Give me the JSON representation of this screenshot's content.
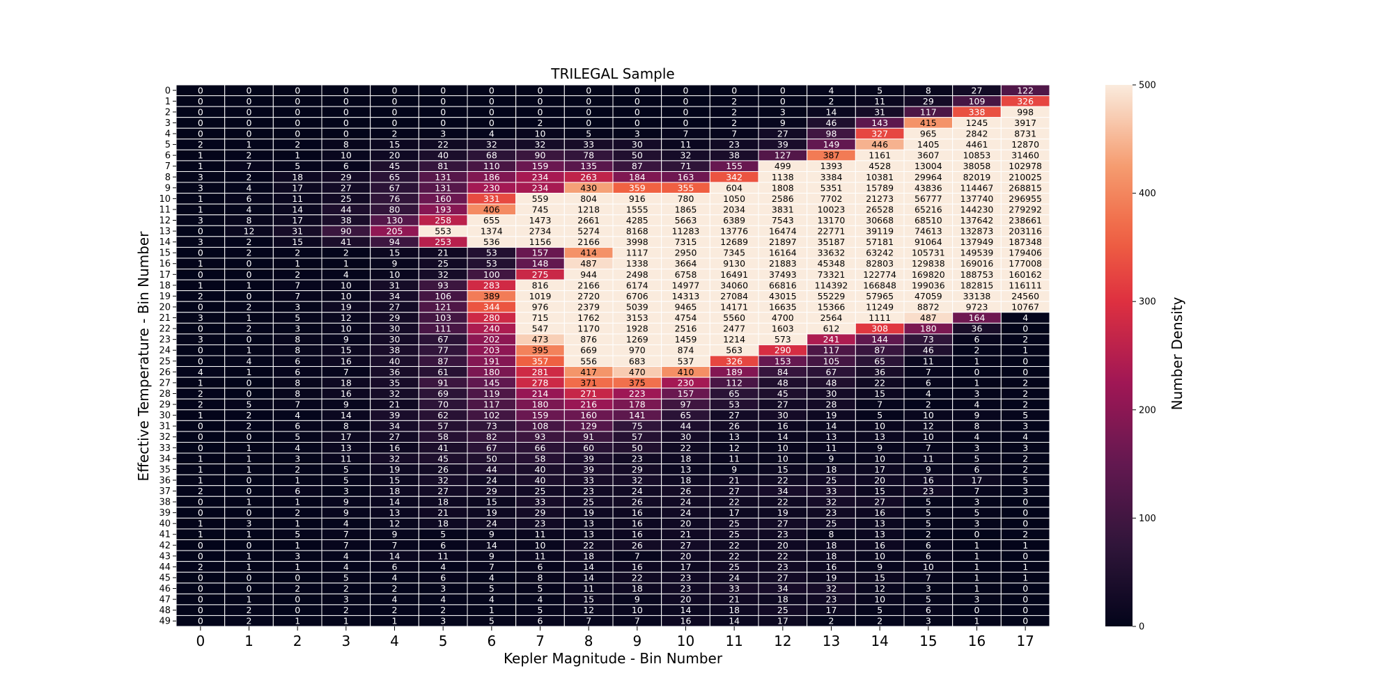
{
  "chart_data": {
    "type": "heatmap",
    "title": "TRILEGAL Sample",
    "xlabel": "Kepler Magnitude - Bin Number",
    "ylabel": "Effective Temperature - Bin Number",
    "colorbar_label": "Number Density",
    "colorbar_range": [
      0,
      500
    ],
    "colorbar_ticks": [
      0,
      100,
      200,
      300,
      400,
      500
    ],
    "colormap": "rocket",
    "gridlines": "white",
    "x_categories": [
      "0",
      "1",
      "2",
      "3",
      "4",
      "5",
      "6",
      "7",
      "8",
      "9",
      "10",
      "11",
      "12",
      "13",
      "14",
      "15",
      "16",
      "17"
    ],
    "y_categories": [
      "0",
      "1",
      "2",
      "3",
      "4",
      "5",
      "6",
      "7",
      "8",
      "9",
      "10",
      "11",
      "12",
      "13",
      "14",
      "15",
      "16",
      "17",
      "18",
      "19",
      "20",
      "21",
      "22",
      "23",
      "24",
      "25",
      "26",
      "27",
      "28",
      "29",
      "30",
      "31",
      "32",
      "33",
      "34",
      "35",
      "36",
      "37",
      "38",
      "39",
      "40",
      "41",
      "42",
      "43",
      "44",
      "45",
      "46",
      "47",
      "48",
      "49"
    ],
    "values": [
      [
        0,
        0,
        0,
        0,
        0,
        0,
        0,
        0,
        0,
        0,
        0,
        0,
        0,
        4,
        5,
        8,
        27,
        122
      ],
      [
        0,
        0,
        0,
        0,
        0,
        0,
        0,
        0,
        0,
        0,
        0,
        2,
        0,
        2,
        11,
        29,
        109,
        326
      ],
      [
        0,
        0,
        0,
        0,
        0,
        0,
        0,
        0,
        0,
        0,
        0,
        2,
        3,
        14,
        31,
        117,
        338,
        998
      ],
      [
        0,
        0,
        0,
        0,
        0,
        0,
        0,
        2,
        0,
        0,
        0,
        2,
        9,
        46,
        143,
        415,
        1245,
        3917
      ],
      [
        0,
        0,
        0,
        0,
        2,
        3,
        4,
        10,
        5,
        3,
        7,
        7,
        27,
        98,
        327,
        965,
        2842,
        8731
      ],
      [
        2,
        1,
        2,
        8,
        15,
        22,
        32,
        32,
        33,
        30,
        11,
        23,
        39,
        149,
        446,
        1405,
        4461,
        12870
      ],
      [
        1,
        2,
        1,
        10,
        20,
        40,
        68,
        90,
        78,
        50,
        32,
        38,
        127,
        387,
        1161,
        3607,
        10853,
        31460
      ],
      [
        1,
        7,
        5,
        6,
        45,
        81,
        110,
        159,
        135,
        87,
        71,
        155,
        499,
        1393,
        4528,
        13004,
        38058,
        102978
      ],
      [
        3,
        2,
        18,
        29,
        65,
        131,
        186,
        234,
        263,
        184,
        163,
        342,
        1138,
        3384,
        10381,
        29964,
        82019,
        210025
      ],
      [
        3,
        4,
        17,
        27,
        67,
        131,
        230,
        234,
        430,
        359,
        355,
        604,
        1808,
        5351,
        15789,
        43836,
        114467,
        268815
      ],
      [
        1,
        6,
        11,
        25,
        76,
        160,
        331,
        559,
        804,
        916,
        780,
        1050,
        2586,
        7702,
        21273,
        56777,
        137740,
        296955
      ],
      [
        1,
        4,
        14,
        44,
        80,
        193,
        406,
        745,
        1218,
        1555,
        1865,
        2034,
        3831,
        10023,
        26528,
        65216,
        144230,
        279292
      ],
      [
        3,
        8,
        17,
        38,
        130,
        258,
        655,
        1473,
        2661,
        4285,
        5663,
        6389,
        7543,
        13170,
        30668,
        68510,
        137642,
        238661
      ],
      [
        0,
        12,
        31,
        90,
        205,
        553,
        1374,
        2734,
        5274,
        8168,
        11283,
        13776,
        16474,
        22771,
        39119,
        74613,
        132873,
        203116
      ],
      [
        3,
        2,
        15,
        41,
        94,
        253,
        536,
        1156,
        2166,
        3998,
        7315,
        12689,
        21897,
        35187,
        57181,
        91064,
        137949,
        187348
      ],
      [
        0,
        2,
        2,
        2,
        15,
        21,
        53,
        157,
        414,
        1117,
        2950,
        7345,
        16164,
        33632,
        63242,
        105731,
        149539,
        179406
      ],
      [
        1,
        0,
        1,
        1,
        9,
        25,
        53,
        148,
        487,
        1338,
        3664,
        9130,
        21883,
        45348,
        82803,
        129838,
        169016,
        177008
      ],
      [
        0,
        0,
        2,
        4,
        10,
        32,
        100,
        275,
        944,
        2498,
        6758,
        16491,
        37493,
        73321,
        122774,
        169820,
        188753,
        160162
      ],
      [
        1,
        1,
        7,
        10,
        31,
        93,
        283,
        816,
        2166,
        6174,
        14977,
        34060,
        66816,
        114392,
        166848,
        199036,
        182815,
        116111
      ],
      [
        2,
        0,
        7,
        10,
        34,
        106,
        389,
        1019,
        2720,
        6706,
        14313,
        27084,
        43015,
        55229,
        57965,
        47059,
        33138,
        24560
      ],
      [
        0,
        2,
        3,
        19,
        27,
        121,
        344,
        976,
        2379,
        5039,
        9465,
        14171,
        16635,
        15366,
        11249,
        8872,
        9723,
        10767
      ],
      [
        3,
        1,
        5,
        12,
        29,
        103,
        280,
        715,
        1762,
        3153,
        4754,
        5560,
        4700,
        2564,
        1111,
        487,
        164,
        4
      ],
      [
        0,
        2,
        3,
        10,
        30,
        111,
        240,
        547,
        1170,
        1928,
        2516,
        2477,
        1603,
        612,
        308,
        180,
        36,
        0
      ],
      [
        3,
        0,
        8,
        9,
        30,
        67,
        202,
        473,
        876,
        1269,
        1459,
        1214,
        573,
        241,
        144,
        73,
        6,
        2
      ],
      [
        0,
        1,
        8,
        15,
        38,
        77,
        203,
        395,
        669,
        970,
        874,
        563,
        290,
        117,
        87,
        46,
        2,
        1
      ],
      [
        0,
        4,
        6,
        16,
        40,
        87,
        191,
        357,
        556,
        683,
        537,
        326,
        153,
        105,
        65,
        11,
        1,
        0
      ],
      [
        4,
        1,
        6,
        7,
        36,
        61,
        180,
        281,
        417,
        470,
        410,
        189,
        84,
        67,
        36,
        7,
        0,
        0
      ],
      [
        1,
        0,
        8,
        18,
        35,
        91,
        145,
        278,
        371,
        375,
        230,
        112,
        48,
        48,
        22,
        6,
        1,
        2
      ],
      [
        2,
        0,
        8,
        16,
        32,
        69,
        119,
        214,
        271,
        223,
        157,
        65,
        45,
        30,
        15,
        4,
        3,
        2
      ],
      [
        2,
        5,
        7,
        9,
        21,
        70,
        117,
        180,
        216,
        178,
        97,
        53,
        27,
        28,
        7,
        2,
        4,
        2
      ],
      [
        1,
        2,
        4,
        14,
        39,
        62,
        102,
        159,
        160,
        141,
        65,
        27,
        30,
        19,
        5,
        10,
        9,
        5
      ],
      [
        0,
        2,
        6,
        8,
        34,
        57,
        73,
        108,
        129,
        75,
        44,
        26,
        16,
        14,
        10,
        12,
        8,
        3
      ],
      [
        0,
        0,
        5,
        17,
        27,
        58,
        82,
        93,
        91,
        57,
        30,
        13,
        14,
        13,
        13,
        10,
        4,
        4
      ],
      [
        0,
        1,
        4,
        13,
        16,
        41,
        67,
        66,
        60,
        50,
        22,
        12,
        10,
        11,
        9,
        7,
        3,
        3
      ],
      [
        1,
        1,
        3,
        11,
        32,
        45,
        50,
        58,
        39,
        23,
        18,
        11,
        10,
        9,
        10,
        11,
        5,
        2
      ],
      [
        1,
        1,
        2,
        5,
        19,
        26,
        44,
        40,
        39,
        29,
        13,
        9,
        15,
        18,
        17,
        9,
        6,
        2
      ],
      [
        1,
        0,
        1,
        5,
        15,
        32,
        24,
        40,
        33,
        32,
        18,
        21,
        22,
        25,
        20,
        16,
        17,
        5
      ],
      [
        2,
        0,
        6,
        3,
        18,
        27,
        29,
        25,
        23,
        24,
        26,
        27,
        34,
        33,
        15,
        23,
        7,
        3
      ],
      [
        0,
        1,
        1,
        9,
        14,
        18,
        15,
        33,
        25,
        26,
        24,
        22,
        22,
        32,
        27,
        5,
        3,
        0
      ],
      [
        0,
        0,
        2,
        9,
        13,
        21,
        19,
        29,
        19,
        16,
        24,
        17,
        19,
        23,
        16,
        5,
        5,
        0
      ],
      [
        1,
        3,
        1,
        4,
        12,
        18,
        24,
        23,
        13,
        16,
        20,
        25,
        27,
        25,
        13,
        5,
        3,
        0
      ],
      [
        1,
        1,
        5,
        7,
        9,
        5,
        9,
        11,
        13,
        16,
        21,
        25,
        23,
        8,
        13,
        2,
        0,
        2
      ],
      [
        0,
        0,
        1,
        7,
        7,
        6,
        14,
        10,
        22,
        26,
        27,
        22,
        20,
        18,
        16,
        6,
        1,
        1
      ],
      [
        0,
        1,
        3,
        4,
        14,
        11,
        9,
        11,
        18,
        7,
        20,
        22,
        22,
        18,
        10,
        6,
        1,
        0
      ],
      [
        2,
        1,
        1,
        4,
        6,
        4,
        7,
        6,
        14,
        16,
        17,
        25,
        23,
        16,
        9,
        10,
        1,
        1
      ],
      [
        0,
        0,
        0,
        5,
        4,
        6,
        4,
        8,
        14,
        22,
        23,
        24,
        27,
        19,
        15,
        7,
        1,
        1
      ],
      [
        0,
        0,
        2,
        2,
        2,
        3,
        5,
        5,
        11,
        18,
        23,
        33,
        34,
        32,
        12,
        3,
        1,
        0
      ],
      [
        0,
        1,
        0,
        3,
        4,
        4,
        4,
        4,
        15,
        9,
        20,
        21,
        18,
        23,
        10,
        5,
        3,
        0
      ],
      [
        0,
        2,
        0,
        2,
        2,
        2,
        1,
        5,
        12,
        10,
        14,
        18,
        25,
        17,
        5,
        6,
        0,
        0
      ],
      [
        0,
        2,
        1,
        1,
        1,
        3,
        5,
        6,
        7,
        7,
        16,
        14,
        17,
        2,
        2,
        3,
        1,
        0
      ]
    ]
  }
}
